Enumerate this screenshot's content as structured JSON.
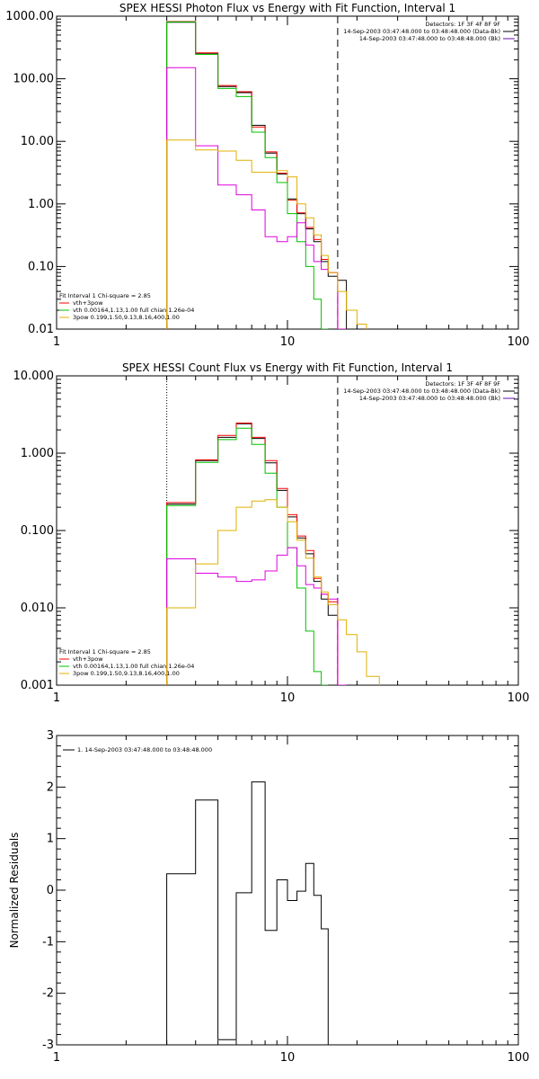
{
  "colors": {
    "background": "#ffffff",
    "axes": "#000000",
    "black": "#000000",
    "red": "#ff0000",
    "green": "#00c000",
    "magenta": "#e000e0",
    "yellow": "#e0b000",
    "purple": "#6a0dad"
  },
  "chart_data": [
    {
      "type": "line",
      "step": true,
      "title": "SPEX HESSI Photon Flux vs Energy with Fit Function, Interval 1",
      "xscale": "log",
      "yscale": "log",
      "xlim": [
        1,
        100
      ],
      "ylim": [
        0.01,
        1000
      ],
      "xticks": [
        1,
        10,
        100
      ],
      "xtick_labels": [
        "1",
        "10",
        "100"
      ],
      "yticks": [
        0.01,
        0.1,
        1,
        10,
        100,
        1000
      ],
      "ytick_labels": [
        "0.01",
        "0.10",
        "1.00",
        "10.00",
        "100.00",
        "1000.00"
      ],
      "vlines": [
        {
          "x": 3.0,
          "style": "dotted",
          "color": "black"
        },
        {
          "x": 16.5,
          "style": "dashed",
          "color": "black"
        }
      ],
      "info_top_right": [
        {
          "text": "Detectors: 1F 3F 4F 8F 9F",
          "color": "black"
        },
        {
          "text": "14-Sep-2003 03:47:48.000 to 03:48:48.000 (Data-Bk)",
          "color": "black"
        },
        {
          "text": "14-Sep-2003 03:47:48.000 to 03:48:48.000 (Bk)",
          "color": "purple"
        }
      ],
      "fit_legend": [
        {
          "text": "Fit Interval  1    Chi-square = 2.85",
          "color": "black"
        },
        {
          "text": "vth+3pow",
          "color": "red"
        },
        {
          "text": "vth 0.00164,1.13,1.00  full chian 1.26e-04",
          "color": "green"
        },
        {
          "text": "3pow 0.199,1.50,9.13,8.16,400,1.00",
          "color": "yellow"
        }
      ],
      "bin_edges": [
        3.0,
        4.0,
        5.0,
        6.0,
        7.0,
        8.0,
        9.0,
        10.0,
        11.0,
        12.0,
        13.0,
        14.0,
        15.0,
        16.5,
        18.0,
        20.0,
        22.0
      ],
      "series": [
        {
          "color": "black",
          "values": [
            800,
            250,
            75,
            60,
            18,
            6.5,
            3.0,
            1.2,
            0.7,
            0.4,
            0.25,
            0.12,
            0.07,
            0.06
          ]
        },
        {
          "color": "red",
          "values": [
            820,
            260,
            78,
            62,
            17,
            6.8,
            3.1,
            1.15,
            0.72,
            0.42,
            0.27,
            0.13,
            0.08
          ]
        },
        {
          "color": "green",
          "values": [
            810,
            245,
            70,
            52,
            14,
            5.5,
            2.2,
            0.7,
            0.25,
            0.1,
            0.03,
            0.01
          ]
        },
        {
          "color": "magenta",
          "values": [
            150,
            8.5,
            2.0,
            1.4,
            0.8,
            0.3,
            0.25,
            0.3,
            0.5,
            0.22,
            0.12,
            0.09,
            0.08,
            0.01
          ]
        },
        {
          "color": "yellow",
          "values": [
            10.5,
            7.3,
            7.0,
            5.0,
            3.2,
            3.2,
            3.4,
            2.7,
            1.0,
            0.6,
            0.32,
            0.15,
            0.08,
            0.04,
            0.02,
            0.012
          ]
        }
      ]
    },
    {
      "type": "line",
      "step": true,
      "title": "SPEX HESSI Count Flux vs Energy with Fit Function, Interval 1",
      "xscale": "log",
      "yscale": "log",
      "xlim": [
        1,
        100
      ],
      "ylim": [
        0.001,
        10
      ],
      "xticks": [
        1,
        10,
        100
      ],
      "xtick_labels": [
        "1",
        "10",
        "100"
      ],
      "yticks": [
        0.001,
        0.01,
        0.1,
        1,
        10
      ],
      "ytick_labels": [
        "0.001",
        "0.010",
        "0.100",
        "1.000",
        "10.000"
      ],
      "vlines": [
        {
          "x": 3.0,
          "style": "dotted",
          "color": "black"
        },
        {
          "x": 16.5,
          "style": "dashed",
          "color": "black"
        }
      ],
      "info_top_right": [
        {
          "text": "Detectors: 1F 3F 4F 8F 9F",
          "color": "black"
        },
        {
          "text": "14-Sep-2003 03:47:48.000 to 03:48:48.000 (Data-Bk)",
          "color": "black"
        },
        {
          "text": "14-Sep-2003 03:47:48.000 to 03:48:48.000 (Bk)",
          "color": "purple"
        }
      ],
      "fit_legend": [
        {
          "text": "Fit Interval  1    Chi-square = 2.85",
          "color": "black"
        },
        {
          "text": "vth+3pow",
          "color": "red"
        },
        {
          "text": "vth 0.00164,1.13,1.00  full chian 1.26e-04",
          "color": "green"
        },
        {
          "text": "3pow 0.199,1.50,9.13,8.16,400,1.00",
          "color": "yellow"
        }
      ],
      "bin_edges": [
        3.0,
        4.0,
        5.0,
        6.0,
        7.0,
        8.0,
        9.0,
        10.0,
        11.0,
        12.0,
        13.0,
        14.0,
        15.0,
        16.5,
        18.0,
        20.0,
        22.0,
        25.0
      ],
      "series": [
        {
          "color": "black",
          "values": [
            0.22,
            0.8,
            1.6,
            2.4,
            1.55,
            0.75,
            0.33,
            0.15,
            0.08,
            0.05,
            0.022,
            0.013,
            0.008
          ]
        },
        {
          "color": "red",
          "values": [
            0.23,
            0.82,
            1.7,
            2.45,
            1.6,
            0.8,
            0.35,
            0.16,
            0.085,
            0.055,
            0.024,
            0.015,
            0.012
          ]
        },
        {
          "color": "green",
          "values": [
            0.21,
            0.76,
            1.5,
            2.1,
            1.3,
            0.55,
            0.2,
            0.06,
            0.018,
            0.005,
            0.0015,
            0.001
          ]
        },
        {
          "color": "magenta",
          "values": [
            0.043,
            0.028,
            0.025,
            0.022,
            0.023,
            0.03,
            0.048,
            0.06,
            0.035,
            0.02,
            0.018,
            0.015,
            0.013,
            0.001
          ]
        },
        {
          "color": "yellow",
          "values": [
            0.01,
            0.037,
            0.1,
            0.2,
            0.24,
            0.25,
            0.2,
            0.13,
            0.075,
            0.044,
            0.025,
            0.016,
            0.011,
            0.007,
            0.0045,
            0.0027,
            0.0013
          ]
        }
      ]
    },
    {
      "type": "line",
      "step": true,
      "ylabel": "Normalized Residuals",
      "xscale": "log",
      "yscale": "linear",
      "xlim": [
        1,
        100
      ],
      "ylim": [
        -3,
        3
      ],
      "xticks": [
        1,
        10,
        100
      ],
      "xtick_labels": [
        "1",
        "10",
        "100"
      ],
      "yticks": [
        -3,
        -2,
        -1,
        0,
        1,
        2,
        3
      ],
      "ytick_labels": [
        "-3",
        "-2",
        "-1",
        "0",
        "1",
        "2",
        "3"
      ],
      "legend": [
        {
          "text": "1. 14-Sep-2003 03:47:48.000 to 03:48:48.000",
          "color": "black"
        }
      ],
      "bin_edges": [
        3.0,
        4.0,
        5.0,
        6.0,
        7.0,
        8.0,
        9.0,
        10.0,
        11.0,
        12.0,
        13.0,
        14.0,
        15.0,
        16.5
      ],
      "series": [
        {
          "color": "black",
          "values": [
            0.32,
            1.75,
            -2.9,
            -0.05,
            2.1,
            -0.78,
            0.2,
            -0.2,
            -0.02,
            0.52,
            -0.1,
            -0.75
          ]
        }
      ]
    }
  ]
}
